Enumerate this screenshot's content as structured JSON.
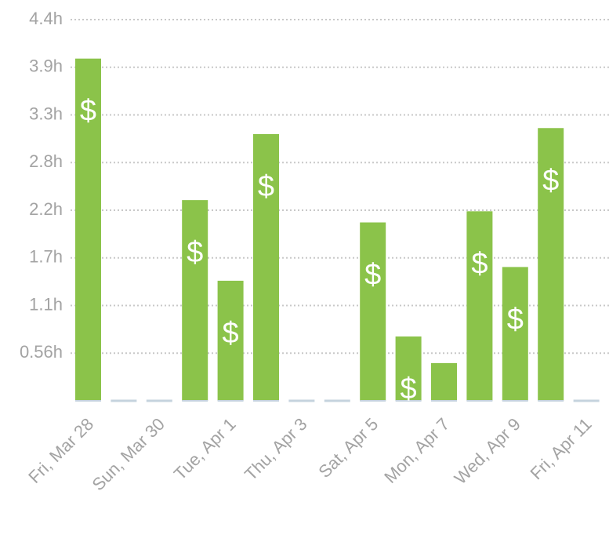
{
  "chart_data": {
    "type": "bar",
    "categories": [
      "Fri, Mar 28",
      null,
      "Sun, Mar 30",
      null,
      "Tue, Apr 1",
      null,
      "Thu, Apr 3",
      null,
      "Sat, Apr 5",
      null,
      "Mon, Apr 7",
      null,
      "Wed, Apr 9",
      null,
      "Fri, Apr 11"
    ],
    "values": [
      3.99,
      0,
      0,
      2.34,
      1.4,
      3.11,
      0,
      0,
      2.08,
      0.75,
      0.44,
      2.21,
      1.56,
      3.18,
      0
    ],
    "billable": [
      true,
      false,
      false,
      true,
      true,
      true,
      false,
      false,
      true,
      true,
      false,
      true,
      true,
      true,
      false
    ],
    "billable_symbol": "$",
    "color": "#8bc34a",
    "empty_color": "#c5d3de",
    "ylim": [
      0,
      4.4444
    ],
    "yticks": [
      {
        "value": 0.5556,
        "label": "0.56h"
      },
      {
        "value": 1.1111,
        "label": "1.1h"
      },
      {
        "value": 1.6667,
        "label": "1.7h"
      },
      {
        "value": 2.2222,
        "label": "2.2h"
      },
      {
        "value": 2.7778,
        "label": "2.8h"
      },
      {
        "value": 3.3333,
        "label": "3.3h"
      },
      {
        "value": 3.8889,
        "label": "3.9h"
      },
      {
        "value": 4.4444,
        "label": "4.4h"
      }
    ],
    "grid": true
  }
}
